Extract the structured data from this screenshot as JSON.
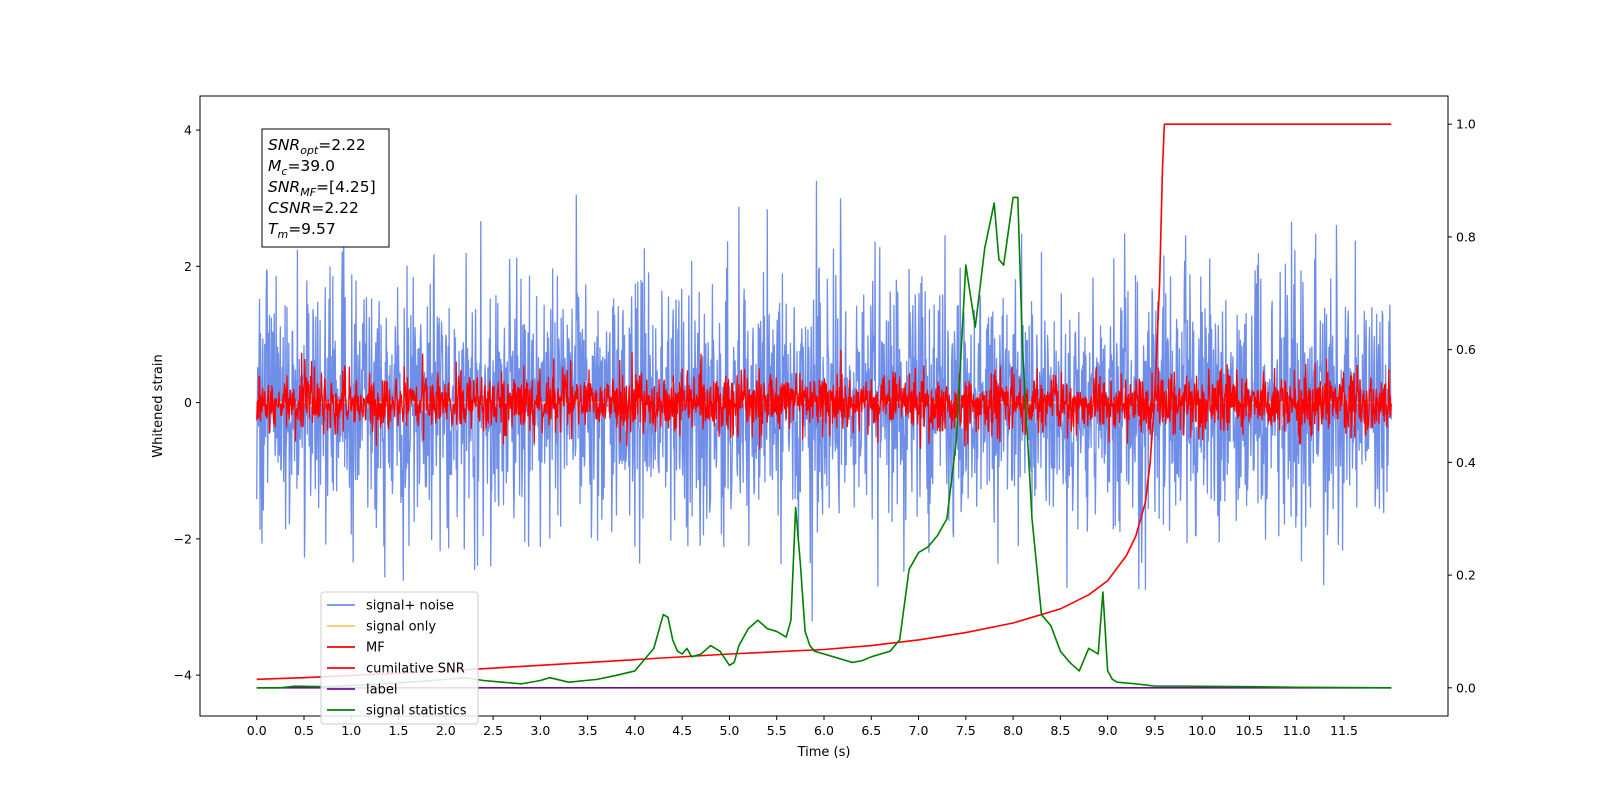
{
  "chart_data": {
    "type": "line",
    "xlabel": "Time (s)",
    "ylabel": "Whitened strain",
    "xlim": [
      -0.6,
      12.6
    ],
    "ylim": [
      -4.6,
      4.5
    ],
    "y2lim": [
      -0.05,
      1.05
    ],
    "xticks": [
      "0.0",
      "0.5",
      "1.0",
      "1.5",
      "2.0",
      "2.5",
      "3.0",
      "3.5",
      "4.0",
      "4.5",
      "5.0",
      "5.5",
      "6.0",
      "6.5",
      "7.0",
      "7.5",
      "8.0",
      "8.5",
      "9.0",
      "9.5",
      "10.0",
      "10.5",
      "11.0",
      "11.5"
    ],
    "yticks": [
      "4",
      "2",
      "0",
      "−2",
      "−4"
    ],
    "y2ticks": [
      "1.0",
      "0.8",
      "0.6",
      "0.4",
      "0.2",
      "0.0"
    ],
    "grid": false,
    "legend_position": "lower-left",
    "info_box": [
      {
        "base": "SNR",
        "sub": "opt",
        "value": "=2.22"
      },
      {
        "base": "M",
        "sub": "c",
        "value": "=39.0"
      },
      {
        "base": "SNR",
        "sub": "MF",
        "value": "=[4.25]"
      },
      {
        "base": "CSNR",
        "sub": "",
        "value": "=2.22"
      },
      {
        "base": "T",
        "sub": "m",
        "value": "=9.57"
      }
    ],
    "series": [
      {
        "name": "signal+ noise",
        "color": "#6f8ee8",
        "axis": "left",
        "kind": "noise",
        "sigma": 0.95,
        "x_range": [
          0.0,
          12.0
        ]
      },
      {
        "name": "signal only",
        "color": "#f5c869",
        "axis": "left",
        "kind": "flat",
        "value": 0.0,
        "x_range": [
          0.0,
          12.0
        ]
      },
      {
        "name": "MF",
        "color": "#ff0000",
        "axis": "left",
        "kind": "noise",
        "sigma": 0.22,
        "x_range": [
          0.0,
          12.0
        ]
      },
      {
        "name": "cumilative SNR",
        "color": "#ff0000",
        "axis": "right",
        "x": [
          0.0,
          0.5,
          1.0,
          2.0,
          3.0,
          4.0,
          5.0,
          6.0,
          6.5,
          7.0,
          7.5,
          8.0,
          8.5,
          8.8,
          9.0,
          9.2,
          9.3,
          9.4,
          9.45,
          9.5,
          9.55,
          9.58,
          9.6,
          12.0
        ],
        "y": [
          0.015,
          0.018,
          0.022,
          0.03,
          0.04,
          0.05,
          0.06,
          0.068,
          0.075,
          0.085,
          0.098,
          0.115,
          0.14,
          0.165,
          0.19,
          0.235,
          0.27,
          0.33,
          0.4,
          0.52,
          0.72,
          0.92,
          1.0,
          1.0
        ]
      },
      {
        "name": "label",
        "color": "#6a0d91",
        "axis": "right",
        "x": [
          0.0,
          12.0
        ],
        "y": [
          0.0,
          0.0
        ]
      },
      {
        "name": "signal statistics",
        "color": "#008000",
        "axis": "right",
        "x": [
          0.0,
          0.25,
          0.4,
          0.7,
          1.0,
          1.3,
          1.6,
          1.8,
          2.0,
          2.2,
          2.4,
          2.6,
          2.8,
          3.0,
          3.1,
          3.3,
          3.6,
          3.8,
          4.0,
          4.2,
          4.3,
          4.35,
          4.4,
          4.45,
          4.5,
          4.55,
          4.6,
          4.7,
          4.8,
          4.9,
          5.0,
          5.05,
          5.1,
          5.2,
          5.3,
          5.4,
          5.5,
          5.6,
          5.65,
          5.7,
          5.75,
          5.8,
          5.85,
          5.9,
          6.0,
          6.1,
          6.2,
          6.3,
          6.4,
          6.5,
          6.6,
          6.7,
          6.8,
          6.9,
          7.0,
          7.1,
          7.2,
          7.3,
          7.4,
          7.5,
          7.6,
          7.7,
          7.8,
          7.85,
          7.9,
          8.0,
          8.05,
          8.1,
          8.2,
          8.3,
          8.4,
          8.5,
          8.6,
          8.7,
          8.8,
          8.9,
          8.95,
          9.0,
          9.05,
          9.1,
          9.3,
          9.5,
          9.8,
          10.5,
          11.0,
          12.0
        ],
        "y": [
          0.0,
          0.0,
          0.003,
          0.002,
          0.004,
          0.006,
          0.01,
          0.012,
          0.015,
          0.018,
          0.013,
          0.01,
          0.007,
          0.013,
          0.018,
          0.01,
          0.015,
          0.022,
          0.03,
          0.07,
          0.13,
          0.125,
          0.085,
          0.065,
          0.06,
          0.07,
          0.055,
          0.06,
          0.075,
          0.065,
          0.04,
          0.045,
          0.075,
          0.105,
          0.12,
          0.105,
          0.1,
          0.09,
          0.12,
          0.32,
          0.22,
          0.1,
          0.075,
          0.065,
          0.06,
          0.055,
          0.05,
          0.045,
          0.048,
          0.055,
          0.06,
          0.065,
          0.085,
          0.21,
          0.24,
          0.25,
          0.27,
          0.3,
          0.44,
          0.75,
          0.64,
          0.78,
          0.86,
          0.76,
          0.75,
          0.87,
          0.87,
          0.6,
          0.3,
          0.13,
          0.11,
          0.065,
          0.045,
          0.03,
          0.07,
          0.06,
          0.17,
          0.03,
          0.015,
          0.01,
          0.007,
          0.003,
          0.003,
          0.002,
          0.001,
          0.0
        ]
      }
    ]
  }
}
